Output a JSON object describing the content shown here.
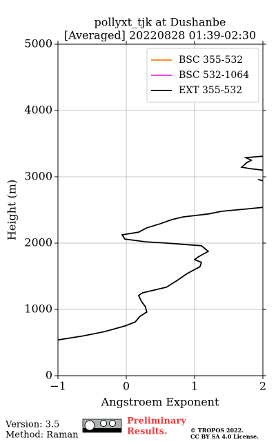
{
  "chart_data": {
    "type": "profile",
    "title": "pollyxt_tjk at Dushanbe",
    "subtitle": "[Averaged] 20220828 01:39-02:30",
    "x_label": "Angstroem Exponent",
    "y_label": "Height (m)",
    "xlim": [
      -1,
      2
    ],
    "ylim": [
      0,
      5000
    ],
    "xticks": [
      {
        "value": -1,
        "label": "−1"
      },
      0,
      1,
      2
    ],
    "yticks": [
      0,
      1000,
      2000,
      3000,
      4000,
      5000
    ],
    "grid": true,
    "legend": "upper right",
    "series": [
      {
        "name": "BSC 355-532",
        "color": "#ff7f0e",
        "x": [],
        "y": []
      },
      {
        "name": "BSC 532-1064",
        "color": "#e631e6",
        "x": [],
        "y": []
      },
      {
        "name": "EXT 355-532",
        "color": "#000000",
        "x": [
          -1.0,
          -0.63,
          -0.32,
          -0.02,
          0.13,
          0.2,
          0.3,
          0.28,
          0.22,
          0.18,
          0.24,
          0.59,
          0.75,
          0.89,
          1.08,
          1.1,
          1.0,
          1.05,
          1.2,
          1.1,
          0.59,
          0.28,
          -0.02,
          -0.06,
          0.18,
          0.3,
          0.49,
          0.67,
          0.83,
          1.2,
          1.4,
          1.81,
          2.0,
          null,
          1.93,
          2.0,
          null,
          2.0,
          1.8,
          1.69,
          1.76,
          1.83,
          1.75,
          2.0
        ],
        "y": [
          540,
          600,
          665,
          750,
          810,
          895,
          960,
          1040,
          1125,
          1210,
          1250,
          1335,
          1440,
          1540,
          1645,
          1710,
          1750,
          1790,
          1875,
          1960,
          2000,
          2020,
          2060,
          2125,
          2165,
          2230,
          2290,
          2355,
          2395,
          2440,
          2480,
          2520,
          2540,
          null,
          2960,
          2940,
          null,
          3100,
          3125,
          3145,
          3210,
          3250,
          3290,
          3310
        ]
      }
    ]
  },
  "footer": {
    "version": "Version: 3.5",
    "method": "Method: Raman",
    "status": [
      "Preliminary",
      "Results."
    ],
    "copyright": [
      "© TROPOS 2022.",
      "CC BY SA 4.0 License."
    ]
  }
}
